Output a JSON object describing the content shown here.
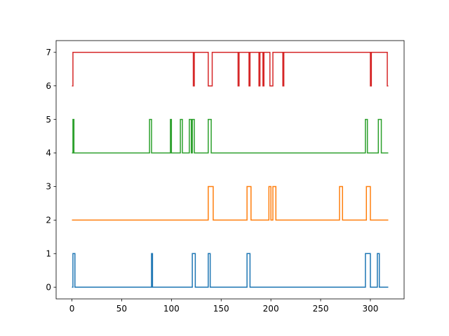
{
  "chart_data": {
    "type": "line",
    "title": "",
    "xlabel": "",
    "ylabel": "",
    "xlim": [
      -15.9,
      333.9
    ],
    "ylim": [
      -0.35,
      7.35
    ],
    "xticks": [
      0,
      50,
      100,
      150,
      200,
      250,
      300
    ],
    "yticks": [
      0,
      1,
      2,
      3,
      4,
      5,
      6,
      7
    ],
    "grid": false,
    "legend": "none",
    "step": "post",
    "series": [
      {
        "color": "#1f77b4",
        "x": [
          0,
          1,
          3,
          80,
          81,
          121,
          124,
          137,
          139,
          176,
          179,
          295,
          300,
          307,
          309,
          318
        ],
        "y": [
          0,
          1,
          0,
          1,
          0,
          1,
          0,
          1,
          0,
          1,
          0,
          1,
          0,
          1,
          0,
          0
        ]
      },
      {
        "color": "#ff7f0e",
        "x": [
          0,
          137,
          142,
          176,
          180,
          198,
          200,
          202,
          205,
          269,
          272,
          296,
          300,
          318
        ],
        "y": [
          2,
          3,
          2,
          3,
          2,
          3,
          2,
          3,
          2,
          3,
          2,
          3,
          2,
          2
        ]
      },
      {
        "color": "#2ca02c",
        "x": [
          0,
          1,
          2,
          78,
          80,
          99,
          100,
          109,
          111,
          118,
          120,
          121,
          123,
          137,
          140,
          295,
          297,
          308,
          311,
          318
        ],
        "y": [
          4,
          5,
          4,
          5,
          4,
          5,
          4,
          5,
          4,
          5,
          4,
          5,
          4,
          5,
          4,
          5,
          4,
          5,
          4,
          4
        ]
      },
      {
        "color": "#d62728",
        "x": [
          0,
          1,
          122,
          123,
          137,
          141,
          167,
          168,
          178,
          179,
          188,
          189,
          192,
          193,
          199,
          202,
          212,
          213,
          300,
          301,
          317,
          318
        ],
        "y": [
          6,
          7,
          6,
          7,
          6,
          7,
          6,
          7,
          6,
          7,
          6,
          7,
          6,
          7,
          6,
          7,
          6,
          7,
          6,
          7,
          6,
          6
        ]
      }
    ]
  }
}
